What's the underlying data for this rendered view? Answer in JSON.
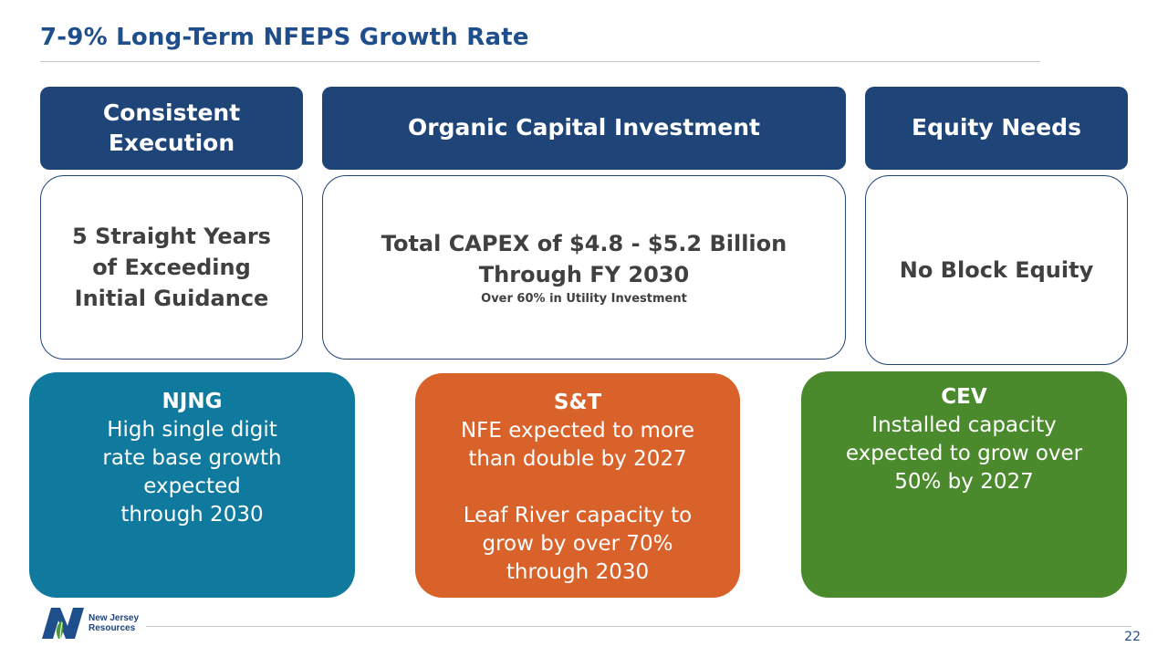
{
  "slide": {
    "title": "7-9% Long-Term NFEPS Growth Rate",
    "page_number": "22"
  },
  "pillars": [
    {
      "header": "Consistent\nExecution",
      "body": "5 Straight Years\nof Exceeding\nInitial Guidance",
      "sub": ""
    },
    {
      "header": "Organic Capital Investment",
      "body": "Total CAPEX of $4.8 - $5.2 Billion\nThrough FY 2030",
      "sub": "Over 60% in Utility Investment"
    },
    {
      "header": "Equity Needs",
      "body": "No Block Equity",
      "sub": ""
    }
  ],
  "segments": [
    {
      "title": "NJNG",
      "text": "High single digit\nrate base growth\nexpected\nthrough 2030",
      "color": "#0f7a9e"
    },
    {
      "title": "S&T",
      "text": "NFE expected to more\nthan double by 2027\n\nLeaf River capacity to\ngrow by over 70%\nthrough 2030",
      "color": "#d9622b"
    },
    {
      "title": "CEV",
      "text": "Installed capacity\nexpected to grow over\n50% by 2027",
      "color": "#4a8a2c"
    }
  ],
  "logo": {
    "line1": "New Jersey",
    "line2": "Resources",
    "icon": "njr-logo-icon"
  },
  "colors": {
    "title": "#1f4e8c",
    "header_fill": "#1f4478"
  }
}
